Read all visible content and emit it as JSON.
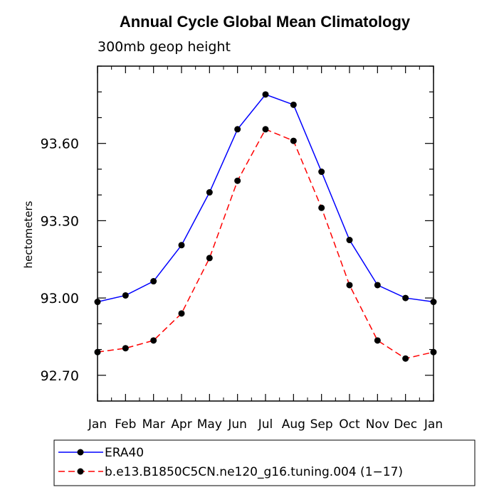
{
  "chart_data": {
    "type": "line",
    "title": "Annual Cycle Global Mean Climatology",
    "subtitle": "300mb geop height",
    "ylabel": "hectometers",
    "ylim": [
      92.6,
      93.9
    ],
    "yticks": [
      "93.60",
      "93.30",
      "93.00",
      "92.70"
    ],
    "ytick_values": [
      93.6,
      93.3,
      93.0,
      92.7
    ],
    "categories": [
      "Jan",
      "Feb",
      "Mar",
      "Apr",
      "May",
      "Jun",
      "Jul",
      "Aug",
      "Sep",
      "Oct",
      "Nov",
      "Dec",
      "Jan"
    ],
    "grid": false,
    "legend_position": "bottom",
    "series": [
      {
        "name": "ERA40",
        "color": "#0000ff",
        "line_style": "solid",
        "values": [
          92.985,
          93.01,
          93.065,
          93.205,
          93.41,
          93.655,
          93.79,
          93.75,
          93.49,
          93.225,
          93.05,
          93.0,
          92.985
        ]
      },
      {
        "name": "b.e13.B1850C5CN.ne120_g16.tuning.004 (1−17)",
        "color": "#ff0000",
        "line_style": "dashed",
        "values": [
          92.79,
          92.805,
          92.835,
          92.94,
          93.155,
          93.455,
          93.655,
          93.61,
          93.35,
          93.05,
          92.835,
          92.765,
          92.79
        ]
      }
    ]
  }
}
